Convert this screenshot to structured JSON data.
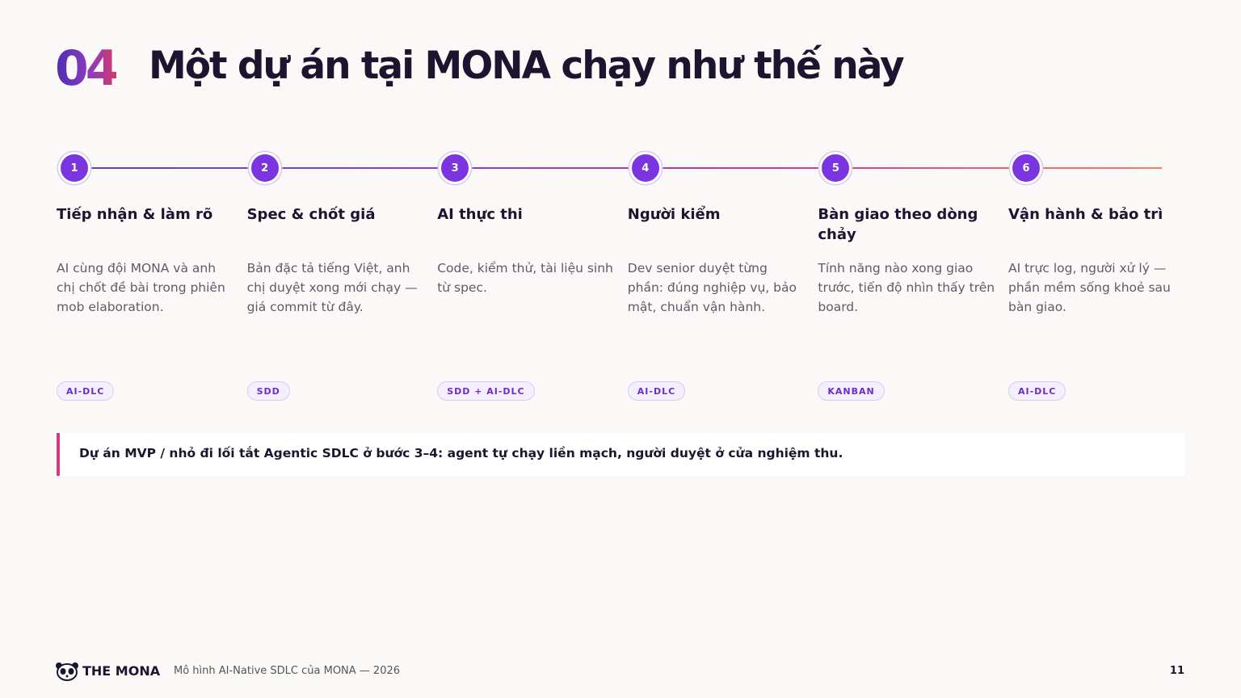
{
  "header": {
    "number": "04",
    "title": "Một dự án tại MONA chạy như thế này"
  },
  "steps": [
    {
      "number": "1",
      "title": "Tiếp nhận & làm rõ",
      "description": "AI cùng đội MONA và anh chị chốt đề bài trong phiên mob elaboration.",
      "tag": "AI-DLC"
    },
    {
      "number": "2",
      "title": "Spec & chốt giá",
      "description": "Bản đặc tả tiếng Việt, anh chị duyệt xong mới chạy — giá commit từ đây.",
      "tag": "SDD"
    },
    {
      "number": "3",
      "title": "AI thực thi",
      "description": "Code, kiểm thử, tài liệu sinh từ spec.",
      "tag": "SDD + AI-DLC"
    },
    {
      "number": "4",
      "title": "Người kiểm",
      "description": "Dev senior duyệt từng phần: đúng nghiệp vụ, bảo mật, chuẩn vận hành.",
      "tag": "AI-DLC"
    },
    {
      "number": "5",
      "title": "Bàn giao theo dòng chảy",
      "description": "Tính năng nào xong giao trước, tiến độ nhìn thấy trên board.",
      "tag": "KANBAN"
    },
    {
      "number": "6",
      "title": "Vận hành & bảo trì",
      "description": "AI trực log, người xử lý — phần mềm sống khoẻ sau bàn giao.",
      "tag": "AI-DLC"
    }
  ],
  "note": "Dự án MVP / nhỏ đi lối tắt Agentic SDLC ở bước 3–4: agent tự chạy liền mạch, người duyệt ở cửa nghiệm thu.",
  "footer": {
    "brand": "THE MONA",
    "text": "Mô hình AI-Native SDLC của MONA — 2026",
    "page": "11"
  }
}
